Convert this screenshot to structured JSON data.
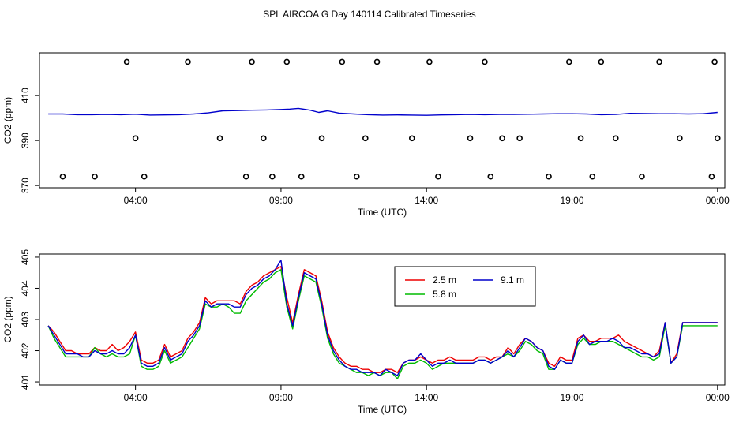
{
  "page": {
    "title": "SPL AIRCOA G  Day 140114  Calibrated Timeseries"
  },
  "chart_data": [
    {
      "type": "line",
      "title": "SPL AIRCOA G  Day 140114  Calibrated Timeseries",
      "xlabel": "Time (UTC)",
      "ylabel": "CO2 (ppm)",
      "xlim": [
        0.7,
        24.25
      ],
      "ylim": [
        369,
        429
      ],
      "xtick_values": [
        4,
        9,
        14,
        19,
        24
      ],
      "xtick_labels": [
        "04:00",
        "09:00",
        "14:00",
        "19:00",
        "00:00"
      ],
      "ytick_values": [
        370,
        390,
        410
      ],
      "ytick_labels": [
        "370",
        "390",
        "410"
      ],
      "series": [
        {
          "name": "CO2 line",
          "color": "#0000cc",
          "x": [
            1.0,
            1.5,
            2.0,
            2.5,
            3.0,
            3.5,
            4.0,
            4.5,
            5.0,
            5.5,
            6.0,
            6.5,
            7.0,
            7.5,
            8.0,
            8.5,
            9.0,
            9.3,
            9.6,
            10.0,
            10.3,
            10.6,
            11.0,
            11.5,
            12.0,
            12.5,
            13.0,
            13.5,
            14.0,
            14.5,
            15.0,
            15.5,
            16.0,
            16.5,
            17.0,
            17.5,
            18.0,
            18.5,
            19.0,
            19.5,
            20.0,
            20.5,
            21.0,
            21.5,
            22.0,
            22.5,
            23.0,
            23.5,
            24.0
          ],
          "values": [
            401.8,
            401.8,
            401.5,
            401.5,
            401.6,
            401.5,
            401.7,
            401.3,
            401.4,
            401.5,
            401.8,
            402.3,
            403.2,
            403.3,
            403.5,
            403.6,
            403.8,
            404.0,
            404.3,
            403.5,
            402.5,
            403.2,
            402.2,
            401.8,
            401.5,
            401.3,
            401.4,
            401.3,
            401.2,
            401.4,
            401.5,
            401.6,
            401.5,
            401.6,
            401.6,
            401.7,
            401.8,
            401.9,
            401.9,
            401.8,
            401.5,
            401.6,
            402.1,
            402.0,
            401.9,
            401.9,
            401.8,
            401.9,
            402.5
          ]
        }
      ],
      "markers": {
        "label": "o",
        "x": [
          1.5,
          2.6,
          3.7,
          4.0,
          4.3,
          5.8,
          6.9,
          7.8,
          8.0,
          8.4,
          8.7,
          9.2,
          9.7,
          10.4,
          11.1,
          11.6,
          11.9,
          12.3,
          13.5,
          14.1,
          14.4,
          15.5,
          16.0,
          16.2,
          16.6,
          17.2,
          18.2,
          18.9,
          19.3,
          19.7,
          20.0,
          20.5,
          21.4,
          22.0,
          22.7,
          23.8,
          23.9,
          24.0
        ],
        "values": [
          374,
          374,
          425,
          391,
          374,
          425,
          391,
          374,
          425,
          391,
          374,
          425,
          374,
          391,
          425,
          374,
          391,
          425,
          391,
          425,
          374,
          391,
          425,
          374,
          391,
          391,
          374,
          425,
          391,
          374,
          425,
          391,
          374,
          425,
          391,
          374,
          425,
          391
        ]
      }
    },
    {
      "type": "line",
      "xlabel": "Time (UTC)",
      "ylabel": "CO2 (ppm)",
      "xlim": [
        0.7,
        24.25
      ],
      "ylim": [
        400.9,
        405.1
      ],
      "xtick_values": [
        4,
        9,
        14,
        19,
        24
      ],
      "xtick_labels": [
        "04:00",
        "09:00",
        "14:00",
        "19:00",
        "00:00"
      ],
      "ytick_values": [
        401,
        402,
        403,
        404,
        405
      ],
      "ytick_labels": [
        "401",
        "402",
        "403",
        "404",
        "405"
      ],
      "legend": {
        "position": "top-center",
        "entries": [
          "2.5 m",
          "9.1 m",
          "5.8 m"
        ]
      },
      "x": [
        1.0,
        1.2,
        1.4,
        1.6,
        1.8,
        2.0,
        2.2,
        2.4,
        2.6,
        2.8,
        3.0,
        3.2,
        3.4,
        3.6,
        3.8,
        4.0,
        4.2,
        4.4,
        4.6,
        4.8,
        5.0,
        5.2,
        5.4,
        5.6,
        5.8,
        6.0,
        6.2,
        6.4,
        6.6,
        6.8,
        7.0,
        7.2,
        7.4,
        7.6,
        7.8,
        8.0,
        8.2,
        8.4,
        8.6,
        8.8,
        9.0,
        9.2,
        9.4,
        9.6,
        9.8,
        10.0,
        10.2,
        10.4,
        10.6,
        10.8,
        11.0,
        11.2,
        11.4,
        11.6,
        11.8,
        12.0,
        12.2,
        12.4,
        12.6,
        12.8,
        13.0,
        13.2,
        13.4,
        13.6,
        13.8,
        14.0,
        14.2,
        14.4,
        14.6,
        14.8,
        15.0,
        15.2,
        15.4,
        15.6,
        15.8,
        16.0,
        16.2,
        16.4,
        16.6,
        16.8,
        17.0,
        17.2,
        17.4,
        17.6,
        17.8,
        18.0,
        18.2,
        18.4,
        18.6,
        18.8,
        19.0,
        19.2,
        19.4,
        19.6,
        19.8,
        20.0,
        20.2,
        20.4,
        20.6,
        20.8,
        21.0,
        21.2,
        21.4,
        21.6,
        21.8,
        22.0,
        22.2,
        22.4,
        22.6,
        22.8,
        23.0,
        23.2,
        23.4,
        23.6,
        23.8,
        24.0
      ],
      "series": [
        {
          "name": "2.5 m",
          "color": "#ee0000",
          "values": [
            402.8,
            402.6,
            402.3,
            402.0,
            402.0,
            401.9,
            401.9,
            401.9,
            402.1,
            402.0,
            402.0,
            402.2,
            402.0,
            402.1,
            402.3,
            402.6,
            401.7,
            401.6,
            401.6,
            401.7,
            402.2,
            401.8,
            401.9,
            402.0,
            402.4,
            402.6,
            402.9,
            403.7,
            403.5,
            403.6,
            403.6,
            403.6,
            403.6,
            403.5,
            403.9,
            404.1,
            404.2,
            404.4,
            404.5,
            404.6,
            404.7,
            403.7,
            402.9,
            403.8,
            404.6,
            404.5,
            404.4,
            403.6,
            402.6,
            402.1,
            401.8,
            401.6,
            401.5,
            401.5,
            401.4,
            401.4,
            401.3,
            401.3,
            401.4,
            401.4,
            401.3,
            401.6,
            401.7,
            401.7,
            401.8,
            401.7,
            401.6,
            401.7,
            401.7,
            401.8,
            401.7,
            401.7,
            401.7,
            401.7,
            401.8,
            401.8,
            401.7,
            401.8,
            401.8,
            402.1,
            401.9,
            402.2,
            402.4,
            402.3,
            402.1,
            402.0,
            401.6,
            401.5,
            401.8,
            401.7,
            401.7,
            402.4,
            402.5,
            402.3,
            402.3,
            402.4,
            402.4,
            402.4,
            402.5,
            402.3,
            402.2,
            402.1,
            402.0,
            401.9,
            401.8,
            402.0,
            402.9,
            401.6,
            401.9,
            402.9,
            402.9,
            402.9,
            402.9,
            402.9,
            402.9,
            402.9
          ],
          "_note": ""
        },
        {
          "name": "5.8 m",
          "color": "#00bb00",
          "values": [
            402.8,
            402.4,
            402.1,
            401.8,
            401.8,
            401.8,
            401.8,
            401.8,
            402.1,
            401.9,
            401.8,
            401.9,
            401.8,
            401.8,
            401.9,
            402.5,
            401.5,
            401.4,
            401.4,
            401.5,
            402.0,
            401.6,
            401.7,
            401.8,
            402.1,
            402.4,
            402.7,
            403.5,
            403.4,
            403.4,
            403.5,
            403.4,
            403.2,
            403.2,
            403.6,
            403.8,
            404.0,
            404.2,
            404.3,
            404.5,
            404.6,
            403.4,
            402.7,
            403.6,
            404.4,
            404.3,
            404.2,
            403.4,
            402.4,
            401.9,
            401.6,
            401.5,
            401.4,
            401.3,
            401.3,
            401.2,
            401.3,
            401.2,
            401.3,
            401.3,
            401.1,
            401.5,
            401.6,
            401.6,
            401.7,
            401.6,
            401.4,
            401.5,
            401.6,
            401.6,
            401.6,
            401.6,
            401.6,
            401.6,
            401.7,
            401.7,
            401.6,
            401.7,
            401.8,
            401.9,
            401.8,
            402.0,
            402.3,
            402.2,
            402.0,
            401.9,
            401.4,
            401.4,
            401.7,
            401.6,
            401.6,
            402.2,
            402.4,
            402.2,
            402.2,
            402.3,
            402.3,
            402.3,
            402.2,
            402.1,
            402.0,
            401.9,
            401.8,
            401.8,
            401.7,
            401.8,
            402.8,
            401.6,
            401.8,
            402.8,
            402.8,
            402.8,
            402.8,
            402.8,
            402.8,
            402.8
          ]
        },
        {
          "name": "9.1 m",
          "color": "#0000cc",
          "values": [
            402.8,
            402.5,
            402.2,
            401.9,
            401.9,
            401.9,
            401.8,
            401.8,
            402.0,
            401.9,
            401.9,
            402.0,
            401.9,
            401.9,
            402.1,
            402.5,
            401.6,
            401.5,
            401.5,
            401.6,
            402.1,
            401.7,
            401.8,
            401.9,
            402.3,
            402.5,
            402.8,
            403.6,
            403.4,
            403.5,
            403.5,
            403.5,
            403.4,
            403.4,
            403.8,
            404.0,
            404.1,
            404.3,
            404.4,
            404.6,
            404.9,
            403.5,
            402.8,
            403.7,
            404.5,
            404.4,
            404.3,
            403.5,
            402.5,
            402.0,
            401.7,
            401.5,
            401.4,
            401.4,
            401.3,
            401.3,
            401.3,
            401.2,
            401.4,
            401.3,
            401.2,
            401.6,
            401.7,
            401.7,
            401.9,
            401.7,
            401.5,
            401.6,
            401.6,
            401.7,
            401.6,
            401.6,
            401.6,
            401.6,
            401.7,
            401.7,
            401.6,
            401.7,
            401.8,
            402.0,
            401.8,
            402.1,
            402.4,
            402.3,
            402.1,
            402.0,
            401.5,
            401.4,
            401.7,
            401.6,
            401.6,
            402.3,
            402.5,
            402.2,
            402.3,
            402.3,
            402.3,
            402.4,
            402.3,
            402.1,
            402.1,
            402.0,
            401.9,
            401.9,
            401.8,
            401.9,
            402.9,
            401.6,
            401.8,
            402.9,
            402.9,
            402.9,
            402.9,
            402.9,
            402.9,
            402.9
          ]
        }
      ]
    }
  ]
}
